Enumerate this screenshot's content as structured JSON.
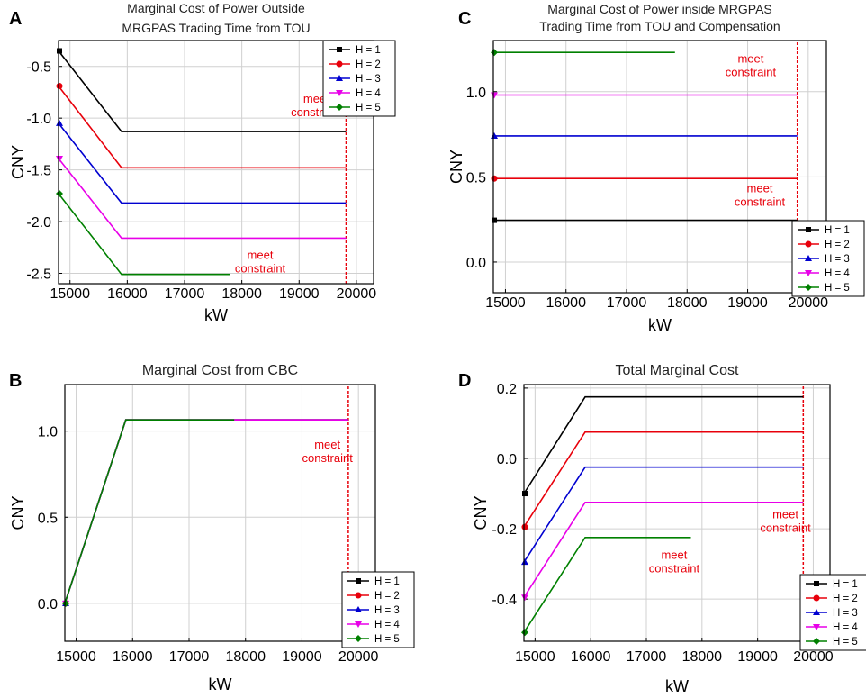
{
  "panel_letters": [
    "A",
    "C",
    "B",
    "D"
  ],
  "series_names": [
    "H = 1",
    "H = 2",
    "H = 3",
    "H = 4",
    "H = 5"
  ],
  "series_colors": [
    "#000000",
    "#e8000b",
    "#0000d0",
    "#e800e8",
    "#008000"
  ],
  "series_markers": [
    "square",
    "circle",
    "triangle-up",
    "triangle-down",
    "diamond"
  ],
  "annotation_color": "#e8000b",
  "chart_data": [
    {
      "type": "line",
      "id": "A",
      "title_lines": [
        "Marginal Cost of Power Outside",
        "MRGPAS Trading Time from TOU"
      ],
      "xlabel": "kW",
      "ylabel": "CNY",
      "xlim": [
        14800,
        20300
      ],
      "ylim": [
        -2.6,
        -0.25
      ],
      "xticks": [
        15000,
        16000,
        17000,
        18000,
        19000,
        20000
      ],
      "yticks": [
        -0.5,
        -1.0,
        -1.5,
        -2.0,
        -2.5
      ],
      "ytick_labels": [
        "-0.5",
        "-1.0",
        "-1.5",
        "-2.0",
        "-2.5"
      ],
      "grid": true,
      "legend": "top-right",
      "vline_x": 19820,
      "annotations": [
        {
          "lines": [
            "meet",
            "constraint"
          ],
          "x": 19300,
          "y": -0.85
        },
        {
          "lines": [
            "meet",
            "constraint"
          ],
          "x": 18320,
          "y": -2.36
        }
      ],
      "series": [
        {
          "name": "H = 1",
          "points": [
            [
              14800,
              -0.35
            ],
            [
              15900,
              -1.13
            ],
            [
              19820,
              -1.13
            ]
          ]
        },
        {
          "name": "H = 2",
          "points": [
            [
              14800,
              -0.69
            ],
            [
              15900,
              -1.48
            ],
            [
              19820,
              -1.48
            ]
          ]
        },
        {
          "name": "H = 3",
          "points": [
            [
              14800,
              -1.05
            ],
            [
              15900,
              -1.82
            ],
            [
              19820,
              -1.82
            ]
          ]
        },
        {
          "name": "H = 4",
          "points": [
            [
              14800,
              -1.39
            ],
            [
              15900,
              -2.16
            ],
            [
              19820,
              -2.16
            ]
          ]
        },
        {
          "name": "H = 5",
          "points": [
            [
              14800,
              -1.73
            ],
            [
              15900,
              -2.51
            ],
            [
              17800,
              -2.51
            ]
          ]
        }
      ]
    },
    {
      "type": "line",
      "id": "C",
      "title_lines": [
        "Marginal Cost of Power inside MRGPAS",
        "Trading Time from TOU and Compensation"
      ],
      "xlabel": "kW",
      "ylabel": "CNY",
      "xlim": [
        14800,
        20300
      ],
      "ylim": [
        -0.18,
        1.3
      ],
      "xticks": [
        15000,
        16000,
        17000,
        18000,
        19000,
        20000
      ],
      "yticks": [
        1.0,
        0.5,
        0.0
      ],
      "ytick_labels": [
        "1.0",
        "0.5",
        "0.0"
      ],
      "grid": true,
      "legend": "bottom-right",
      "vline_x": 19820,
      "annotations": [
        {
          "lines": [
            "meet",
            "constraint"
          ],
          "x": 19050,
          "y": 1.17
        },
        {
          "lines": [
            "meet",
            "constraint"
          ],
          "x": 19200,
          "y": 0.41
        }
      ],
      "series": [
        {
          "name": "H = 1",
          "points": [
            [
              14800,
              0.245
            ],
            [
              19820,
              0.245
            ]
          ]
        },
        {
          "name": "H = 2",
          "points": [
            [
              14800,
              0.49
            ],
            [
              19820,
              0.49
            ]
          ]
        },
        {
          "name": "H = 3",
          "points": [
            [
              14800,
              0.74
            ],
            [
              19820,
              0.74
            ]
          ]
        },
        {
          "name": "H = 4",
          "points": [
            [
              14800,
              0.98
            ],
            [
              19820,
              0.98
            ]
          ]
        },
        {
          "name": "H = 5",
          "points": [
            [
              14800,
              1.23
            ],
            [
              17800,
              1.23
            ]
          ]
        }
      ]
    },
    {
      "type": "line",
      "id": "B",
      "title_lines": [
        "Marginal Cost from CBC"
      ],
      "xlabel": "kW",
      "ylabel": "CNY",
      "xlim": [
        14800,
        20300
      ],
      "ylim": [
        -0.22,
        1.27
      ],
      "xticks": [
        15000,
        16000,
        17000,
        18000,
        19000,
        20000
      ],
      "yticks": [
        1.0,
        0.5,
        0.0
      ],
      "ytick_labels": [
        "1.0",
        "0.5",
        "0.0"
      ],
      "grid": true,
      "legend": "bottom-right",
      "vline_x": 19820,
      "annotations": [
        {
          "lines": [
            "meet",
            "constraint"
          ],
          "x": 19450,
          "y": 0.9
        }
      ],
      "series": [
        {
          "name": "H = 1",
          "points": [
            [
              14800,
              0.0
            ],
            [
              15880,
              1.065
            ],
            [
              19820,
              1.065
            ]
          ]
        },
        {
          "name": "H = 2",
          "points": [
            [
              14800,
              0.0
            ],
            [
              15880,
              1.065
            ],
            [
              19820,
              1.065
            ]
          ]
        },
        {
          "name": "H = 3",
          "points": [
            [
              14800,
              0.0
            ],
            [
              15880,
              1.065
            ],
            [
              19820,
              1.065
            ]
          ]
        },
        {
          "name": "H = 4",
          "points": [
            [
              14800,
              0.0
            ],
            [
              15880,
              1.065
            ],
            [
              19820,
              1.065
            ]
          ]
        },
        {
          "name": "H = 5",
          "points": [
            [
              14800,
              0.0
            ],
            [
              15880,
              1.065
            ],
            [
              17800,
              1.065
            ]
          ]
        }
      ]
    },
    {
      "type": "line",
      "id": "D",
      "title_lines": [
        "Total Marginal Cost"
      ],
      "xlabel": "kW",
      "ylabel": "CNY",
      "xlim": [
        14800,
        20300
      ],
      "ylim": [
        -0.52,
        0.21
      ],
      "xticks": [
        15000,
        16000,
        17000,
        18000,
        19000,
        20000
      ],
      "yticks": [
        0.2,
        0.0,
        -0.2,
        -0.4
      ],
      "ytick_labels": [
        "0.2",
        "0.0",
        "-0.2",
        "-0.4"
      ],
      "grid": true,
      "legend": "bottom-right",
      "vline_x": 19820,
      "annotations": [
        {
          "lines": [
            "meet",
            "constraint"
          ],
          "x": 19500,
          "y": -0.17
        },
        {
          "lines": [
            "meet",
            "constraint"
          ],
          "x": 17500,
          "y": -0.285
        }
      ],
      "series": [
        {
          "name": "H = 1",
          "points": [
            [
              14800,
              -0.1
            ],
            [
              15900,
              0.175
            ],
            [
              19820,
              0.175
            ]
          ]
        },
        {
          "name": "H = 2",
          "points": [
            [
              14800,
              -0.195
            ],
            [
              15900,
              0.075
            ],
            [
              19820,
              0.075
            ]
          ]
        },
        {
          "name": "H = 3",
          "points": [
            [
              14800,
              -0.295
            ],
            [
              15900,
              -0.025
            ],
            [
              19820,
              -0.025
            ]
          ]
        },
        {
          "name": "H = 4",
          "points": [
            [
              14800,
              -0.395
            ],
            [
              15900,
              -0.125
            ],
            [
              19820,
              -0.125
            ]
          ]
        },
        {
          "name": "H = 5",
          "points": [
            [
              14800,
              -0.495
            ],
            [
              15900,
              -0.225
            ],
            [
              17800,
              -0.225
            ]
          ]
        }
      ]
    }
  ]
}
